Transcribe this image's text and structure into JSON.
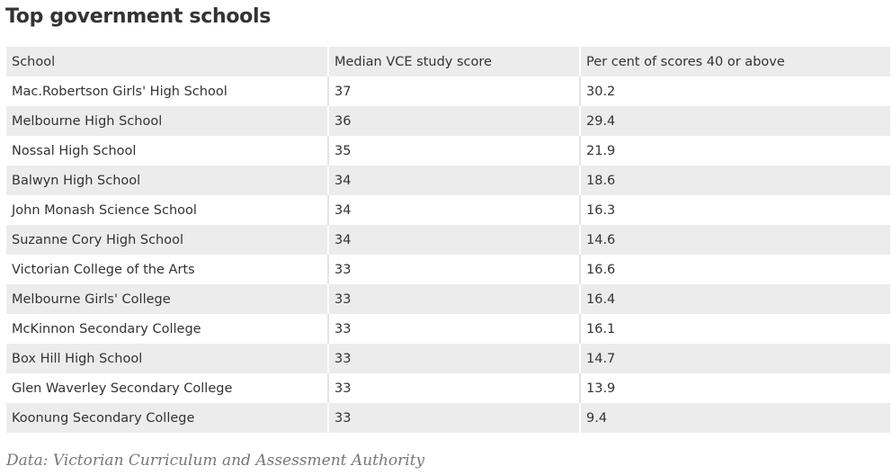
{
  "title": "Top government schools",
  "table": {
    "headers": [
      "School",
      "Median VCE study score",
      "Per cent of scores 40 or above"
    ],
    "rows": [
      [
        "Mac.Robertson Girls' High School",
        "37",
        "30.2"
      ],
      [
        "Melbourne High School",
        "36",
        "29.4"
      ],
      [
        "Nossal High School",
        "35",
        "21.9"
      ],
      [
        "Balwyn High School",
        "34",
        "18.6"
      ],
      [
        "John Monash Science School",
        "34",
        "16.3"
      ],
      [
        "Suzanne Cory High School",
        "34",
        "14.6"
      ],
      [
        "Victorian College of the Arts",
        "33",
        "16.6"
      ],
      [
        "Melbourne Girls' College",
        "33",
        "16.4"
      ],
      [
        "McKinnon Secondary College",
        "33",
        "16.1"
      ],
      [
        "Box Hill High School",
        "33",
        "14.7"
      ],
      [
        "Glen Waverley Secondary College",
        "33",
        "13.9"
      ],
      [
        "Koonung Secondary College",
        "33",
        "9.4"
      ]
    ]
  },
  "source": "Data: Victorian Curriculum and Assessment Authority"
}
